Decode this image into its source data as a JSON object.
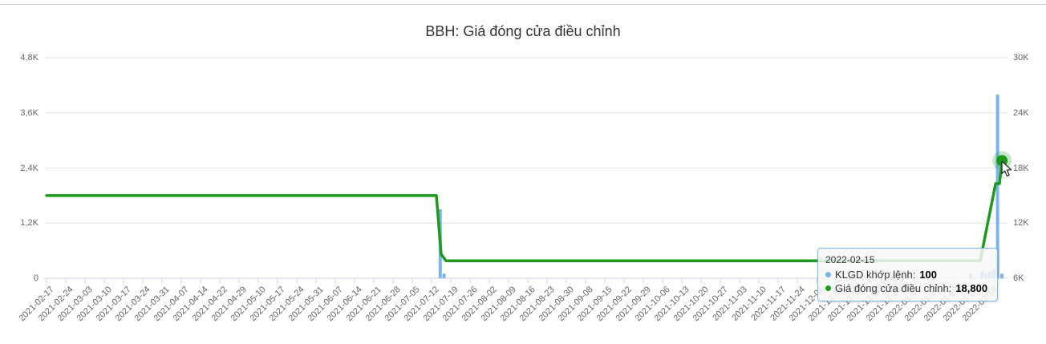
{
  "chart_data": {
    "type": "combo",
    "title": "BBH: Giá đóng cửa điều chỉnh",
    "grid": true,
    "legend_position": "none",
    "colors": {
      "volume_bar": "#7cb5ec",
      "price_line": "#1b9a1b",
      "gridline": "#e6e6e6",
      "axis_line": "#ccd6eb",
      "axis_label": "#666666",
      "title_color": "#333333"
    },
    "y_axis_left": {
      "name": "volume",
      "labels": [
        "4,8K",
        "3,6K",
        "2,4K",
        "1,2K",
        "0"
      ],
      "range": [
        0,
        4800
      ]
    },
    "y_axis_right": {
      "name": "price",
      "labels": [
        "30K",
        "24K",
        "18K",
        "12K",
        "6K"
      ],
      "range": [
        6000,
        30000
      ]
    },
    "x_labels": [
      "2021-02-17",
      "2021-02-24",
      "2021-03-03",
      "2021-03-10",
      "2021-03-17",
      "2021-03-24",
      "2021-03-31",
      "2021-04-07",
      "2021-04-14",
      "2021-04-22",
      "2021-04-29",
      "2021-05-10",
      "2021-05-17",
      "2021-05-24",
      "2021-05-31",
      "2021-06-07",
      "2021-06-14",
      "2021-06-21",
      "2021-06-28",
      "2021-07-05",
      "2021-07-12",
      "2021-07-19",
      "2021-07-26",
      "2021-08-02",
      "2021-08-09",
      "2021-08-16",
      "2021-08-23",
      "2021-08-30",
      "2021-09-08",
      "2021-09-15",
      "2021-09-22",
      "2021-09-29",
      "2021-10-06",
      "2021-10-13",
      "2021-10-20",
      "2021-10-27",
      "2021-11-03",
      "2021-11-10",
      "2021-11-17",
      "2021-11-24",
      "2021-12-01",
      "2021-12-08",
      "2021-12-15",
      "2021-12-22",
      "2021-12-29",
      "2022-01-06",
      "2022-01-13",
      "2022-01-20",
      "2022-01-27",
      "2022-02-10"
    ],
    "series": [
      {
        "name": "KLGD khớp lệnh",
        "type": "bar",
        "axis": "left",
        "color": "#7cb5ec",
        "points": [
          {
            "d": "2021-07-14",
            "i": 20.45,
            "v": 1500
          },
          {
            "d": "2021-07-15",
            "i": 20.65,
            "v": 100
          },
          {
            "d": "2022-01-27",
            "i": 48.0,
            "v": 100
          },
          {
            "d": "2022-02-08",
            "i": 48.6,
            "v": 150
          },
          {
            "d": "2022-02-09",
            "i": 48.8,
            "v": 100
          },
          {
            "d": "2022-02-10",
            "i": 49.0,
            "v": 150
          },
          {
            "d": "2022-02-11",
            "i": 49.2,
            "v": 200
          },
          {
            "d": "2022-02-14",
            "i": 49.4,
            "v": 4000
          },
          {
            "d": "2022-02-15",
            "i": 49.63,
            "v": 100
          }
        ]
      },
      {
        "name": "Giá đóng cửa điều chỉnh",
        "type": "line",
        "axis": "right",
        "color": "#1b9a1b",
        "points": [
          {
            "d": "2021-02-17",
            "i": 0,
            "v": 15000
          },
          {
            "d": "2021-07-13",
            "i": 20.25,
            "v": 15000
          },
          {
            "d": "2021-07-14",
            "i": 20.5,
            "v": 8600
          },
          {
            "d": "2021-07-15",
            "i": 20.75,
            "v": 7900
          },
          {
            "d": "2022-02-07",
            "i": 48.5,
            "v": 7900
          },
          {
            "d": "2022-02-10",
            "i": 49.3,
            "v": 16300
          },
          {
            "d": "2022-02-14",
            "i": 49.5,
            "v": 16300
          },
          {
            "d": "2022-02-15",
            "i": 49.63,
            "v": 18800
          }
        ]
      }
    ],
    "hovered_point": {
      "date": "2022-02-15",
      "price": 18800,
      "volume": 100
    },
    "tooltip": {
      "date": "2022-02-15",
      "rows": [
        {
          "label": "KLGD khớp lệnh:",
          "value": "100",
          "color": "#7cb5ec"
        },
        {
          "label": "Giá đóng cửa điều chỉnh:",
          "value": "18,800",
          "color": "#1b9a1b"
        }
      ]
    }
  }
}
